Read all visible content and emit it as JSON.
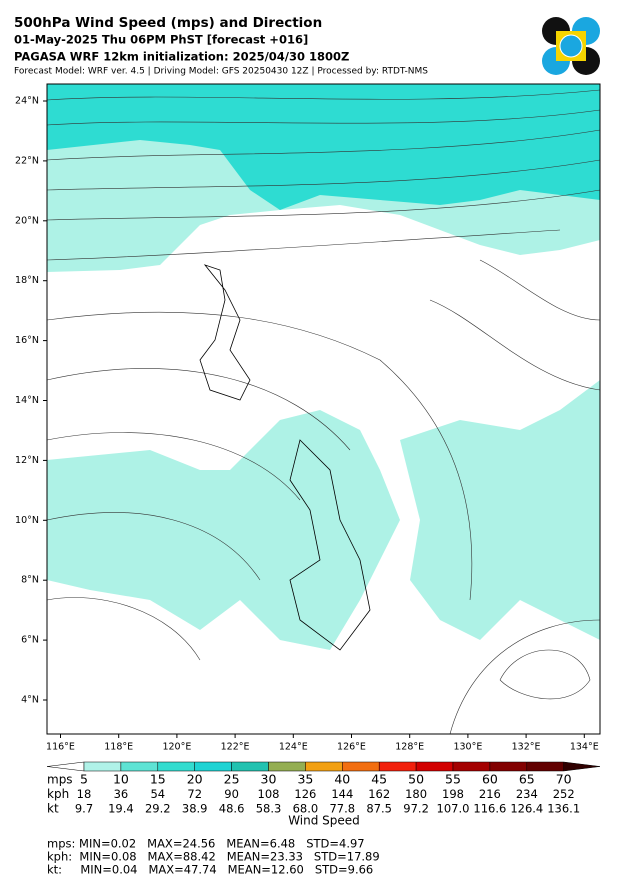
{
  "header": {
    "title": "500hPa Wind Speed (mps) and Direction",
    "line2": "01-May-2025 Thu 06PM PhST [forecast +016]",
    "line3": "PAGASA WRF 12km initialization: 2025/04/30 1800Z",
    "line4": "Forecast Model: WRF ver. 4.5 | Driving Model: GFS 20250430 12Z | Processed by: RTDT-NMS"
  },
  "map": {
    "lon_ticks": [
      {
        "value": 116,
        "label": "116°E"
      },
      {
        "value": 118,
        "label": "118°E"
      },
      {
        "value": 120,
        "label": "120°E"
      },
      {
        "value": 122,
        "label": "122°E"
      },
      {
        "value": 124,
        "label": "124°E"
      },
      {
        "value": 126,
        "label": "126°E"
      },
      {
        "value": 128,
        "label": "128°E"
      },
      {
        "value": 130,
        "label": "130°E"
      },
      {
        "value": 132,
        "label": "132°E"
      },
      {
        "value": 134,
        "label": "134°E"
      }
    ],
    "lat_ticks": [
      {
        "value": 4,
        "label": "4°N"
      },
      {
        "value": 6,
        "label": "6°N"
      },
      {
        "value": 8,
        "label": "8°N"
      },
      {
        "value": 10,
        "label": "10°N"
      },
      {
        "value": 12,
        "label": "12°N"
      },
      {
        "value": 14,
        "label": "14°N"
      },
      {
        "value": 16,
        "label": "16°N"
      },
      {
        "value": 18,
        "label": "18°N"
      },
      {
        "value": 20,
        "label": "20°N"
      },
      {
        "value": 22,
        "label": "22°N"
      },
      {
        "value": 24,
        "label": "24°N"
      }
    ]
  },
  "colorbar": {
    "colors": [
      "#ffffff",
      "#b0f2e8",
      "#5ee3d4",
      "#33dccf",
      "#1ed3d3",
      "#22c2b0",
      "#94ae52",
      "#f2a012",
      "#f26e10",
      "#f2200c",
      "#d20000",
      "#a40000",
      "#820000",
      "#620000",
      "#300000"
    ],
    "rows": [
      {
        "unit": "mps",
        "values": [
          "5",
          "10",
          "15",
          "20",
          "25",
          "30",
          "35",
          "40",
          "45",
          "50",
          "55",
          "60",
          "65",
          "70"
        ]
      },
      {
        "unit": "kph",
        "values": [
          "18",
          "36",
          "54",
          "72",
          "90",
          "108",
          "126",
          "144",
          "162",
          "180",
          "198",
          "216",
          "234",
          "252"
        ]
      },
      {
        "unit": "kt",
        "values": [
          "9.7",
          "19.4",
          "29.2",
          "38.9",
          "48.6",
          "58.3",
          "68.0",
          "77.8",
          "87.5",
          "97.2",
          "107.0",
          "116.6",
          "126.4",
          "136.1"
        ]
      }
    ],
    "label": "Wind Speed"
  },
  "stats": [
    "mps: MIN=0.02   MAX=24.56   MEAN=6.48   STD=4.97",
    "kph:  MIN=0.08   MAX=88.42   MEAN=23.33   STD=17.89",
    "kt:     MIN=0.04   MAX=47.74   MEAN=12.60   STD=9.66"
  ]
}
